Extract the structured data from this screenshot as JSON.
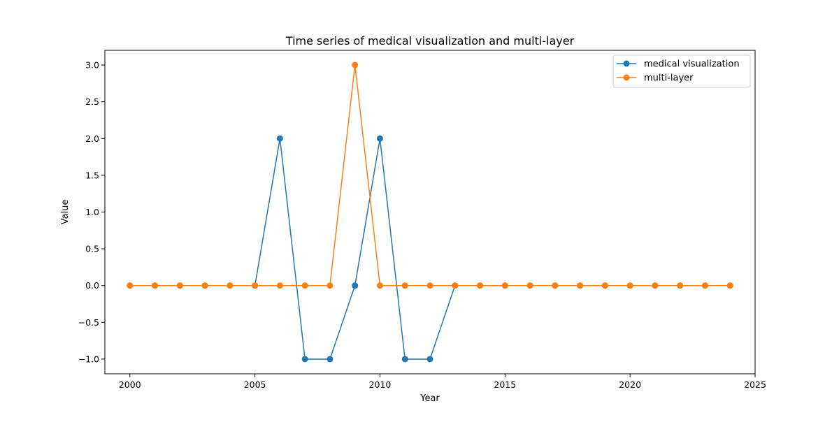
{
  "chart_data": {
    "type": "line",
    "title": "Time series of medical visualization and multi-layer",
    "xlabel": "Year",
    "ylabel": "Value",
    "xlim": [
      1999,
      2025
    ],
    "ylim": [
      -1.2,
      3.2
    ],
    "xticks": [
      2000,
      2005,
      2010,
      2015,
      2020,
      2025
    ],
    "yticks": [
      -1.0,
      -0.5,
      0.0,
      0.5,
      1.0,
      1.5,
      2.0,
      2.5,
      3.0
    ],
    "xtick_labels": [
      "2000",
      "2005",
      "2010",
      "2015",
      "2020",
      "2025"
    ],
    "ytick_labels": [
      "−1.0",
      "−0.5",
      "0.0",
      "0.5",
      "1.0",
      "1.5",
      "2.0",
      "2.5",
      "3.0"
    ],
    "grid": false,
    "legend_position": "top-right",
    "x": [
      2000,
      2001,
      2002,
      2003,
      2004,
      2005,
      2006,
      2007,
      2008,
      2009,
      2010,
      2011,
      2012,
      2013,
      2014,
      2015,
      2016,
      2017,
      2018,
      2019,
      2020,
      2021,
      2022,
      2023,
      2024
    ],
    "series": [
      {
        "name": "medical visualization",
        "color": "#1f77b4",
        "values": [
          0,
          0,
          0,
          0,
          0,
          0,
          2,
          -1,
          -1,
          0,
          2,
          -1,
          -1,
          0,
          0,
          0,
          0,
          0,
          0,
          0,
          0,
          0,
          0,
          0,
          0
        ]
      },
      {
        "name": "multi-layer",
        "color": "#ff7f0e",
        "values": [
          0,
          0,
          0,
          0,
          0,
          0,
          0,
          0,
          0,
          3,
          0,
          0,
          0,
          0,
          0,
          0,
          0,
          0,
          0,
          0,
          0,
          0,
          0,
          0,
          0
        ]
      }
    ]
  }
}
